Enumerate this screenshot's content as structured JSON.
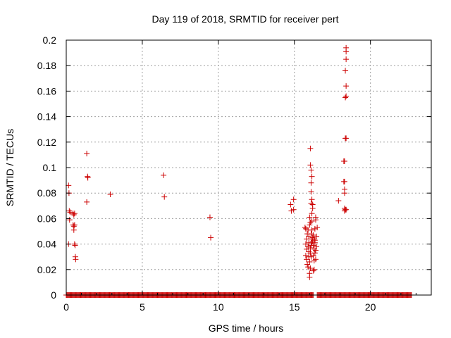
{
  "chart_data": {
    "type": "scatter",
    "title": "Day 119 of 2018, SRMTID for receiver pert",
    "xlabel": "GPS time / hours",
    "ylabel": "SRMTID / TECUs",
    "xlim": [
      0,
      24
    ],
    "ylim": [
      0,
      0.2
    ],
    "xticks": [
      0,
      5,
      10,
      15,
      20
    ],
    "yticks": [
      0,
      0.02,
      0.04,
      0.06,
      0.08,
      0.1,
      0.12,
      0.14,
      0.16,
      0.18,
      0.2
    ],
    "xtick_labels": [
      "0",
      "5",
      "10",
      "15",
      "20"
    ],
    "ytick_labels": [
      "0",
      "0.02",
      "0.04",
      "0.06",
      "0.08",
      "0.1",
      "0.12",
      "0.14",
      "0.16",
      "0.18",
      "0.2"
    ],
    "grid": true,
    "marker": "+",
    "color": "#cc0000",
    "zero_baseline": {
      "x_start": 0,
      "x_end": 22.7,
      "step": 0.05,
      "y": 0,
      "gaps": [
        [
          16.3,
          16.5
        ]
      ]
    },
    "points": [
      [
        0.15,
        0.086
      ],
      [
        0.18,
        0.08
      ],
      [
        0.2,
        0.066
      ],
      [
        0.25,
        0.065
      ],
      [
        0.22,
        0.059
      ],
      [
        0.15,
        0.04
      ],
      [
        0.45,
        0.064
      ],
      [
        0.5,
        0.063
      ],
      [
        0.55,
        0.064
      ],
      [
        0.45,
        0.055
      ],
      [
        0.5,
        0.054
      ],
      [
        0.55,
        0.055
      ],
      [
        0.5,
        0.051
      ],
      [
        0.55,
        0.04
      ],
      [
        0.58,
        0.039
      ],
      [
        0.6,
        0.03
      ],
      [
        0.62,
        0.028
      ],
      [
        1.35,
        0.111
      ],
      [
        1.4,
        0.093
      ],
      [
        1.42,
        0.092
      ],
      [
        1.35,
        0.073
      ],
      [
        2.9,
        0.079
      ],
      [
        6.4,
        0.094
      ],
      [
        6.45,
        0.077
      ],
      [
        9.45,
        0.061
      ],
      [
        9.5,
        0.045
      ],
      [
        14.75,
        0.071
      ],
      [
        14.8,
        0.066
      ],
      [
        14.95,
        0.075
      ],
      [
        14.95,
        0.067
      ],
      [
        15.7,
        0.053
      ],
      [
        15.75,
        0.052
      ],
      [
        15.8,
        0.044
      ],
      [
        15.75,
        0.04
      ],
      [
        15.8,
        0.036
      ],
      [
        15.75,
        0.031
      ],
      [
        15.8,
        0.028
      ],
      [
        15.85,
        0.024
      ],
      [
        15.9,
        0.022
      ],
      [
        15.85,
        0.048
      ],
      [
        15.9,
        0.051
      ],
      [
        15.95,
        0.046
      ],
      [
        15.95,
        0.041
      ],
      [
        15.9,
        0.038
      ],
      [
        15.95,
        0.034
      ],
      [
        15.95,
        0.03
      ],
      [
        16.0,
        0.026
      ],
      [
        16.0,
        0.017
      ],
      [
        16.0,
        0.014
      ],
      [
        16.05,
        0.021
      ],
      [
        16.0,
        0.055
      ],
      [
        16.05,
        0.057
      ],
      [
        16.0,
        0.061
      ],
      [
        16.05,
        0.037
      ],
      [
        16.1,
        0.039
      ],
      [
        16.05,
        0.033
      ],
      [
        16.1,
        0.03
      ],
      [
        16.1,
        0.044
      ],
      [
        16.15,
        0.041
      ],
      [
        16.1,
        0.048
      ],
      [
        16.15,
        0.051
      ],
      [
        16.05,
        0.115
      ],
      [
        16.05,
        0.102
      ],
      [
        16.1,
        0.098
      ],
      [
        16.15,
        0.093
      ],
      [
        16.1,
        0.088
      ],
      [
        16.1,
        0.081
      ],
      [
        16.15,
        0.075
      ],
      [
        16.1,
        0.072
      ],
      [
        16.2,
        0.071
      ],
      [
        16.2,
        0.068
      ],
      [
        16.15,
        0.064
      ],
      [
        16.15,
        0.058
      ],
      [
        16.2,
        0.045
      ],
      [
        16.2,
        0.042
      ],
      [
        16.25,
        0.047
      ],
      [
        16.25,
        0.039
      ],
      [
        16.3,
        0.044
      ],
      [
        16.3,
        0.036
      ],
      [
        16.25,
        0.031
      ],
      [
        16.3,
        0.027
      ],
      [
        16.3,
        0.02
      ],
      [
        16.25,
        0.019
      ],
      [
        16.35,
        0.041
      ],
      [
        16.35,
        0.043
      ],
      [
        16.35,
        0.033
      ],
      [
        16.4,
        0.035
      ],
      [
        16.4,
        0.028
      ],
      [
        16.35,
        0.052
      ],
      [
        16.4,
        0.059
      ],
      [
        16.4,
        0.061
      ],
      [
        16.45,
        0.046
      ],
      [
        16.45,
        0.038
      ],
      [
        16.5,
        0.053
      ],
      [
        17.9,
        0.074
      ],
      [
        18.25,
        0.089
      ],
      [
        18.3,
        0.089
      ],
      [
        18.3,
        0.083
      ],
      [
        18.3,
        0.08
      ],
      [
        18.25,
        0.105
      ],
      [
        18.3,
        0.105
      ],
      [
        18.3,
        0.068
      ],
      [
        18.35,
        0.067
      ],
      [
        18.4,
        0.067
      ],
      [
        18.3,
        0.066
      ],
      [
        18.35,
        0.123
      ],
      [
        18.4,
        0.123
      ],
      [
        18.35,
        0.155
      ],
      [
        18.4,
        0.156
      ],
      [
        18.4,
        0.164
      ],
      [
        18.35,
        0.176
      ],
      [
        18.4,
        0.185
      ],
      [
        18.4,
        0.191
      ],
      [
        18.4,
        0.194
      ]
    ]
  }
}
